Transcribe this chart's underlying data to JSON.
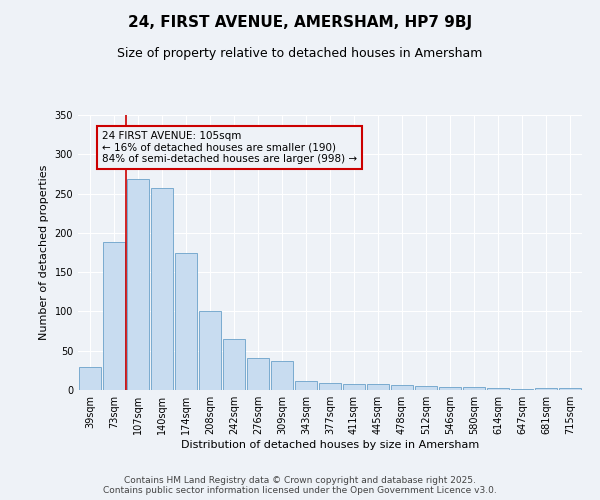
{
  "title1": "24, FIRST AVENUE, AMERSHAM, HP7 9BJ",
  "title2": "Size of property relative to detached houses in Amersham",
  "xlabel": "Distribution of detached houses by size in Amersham",
  "ylabel": "Number of detached properties",
  "categories": [
    "39sqm",
    "73sqm",
    "107sqm",
    "140sqm",
    "174sqm",
    "208sqm",
    "242sqm",
    "276sqm",
    "309sqm",
    "343sqm",
    "377sqm",
    "411sqm",
    "445sqm",
    "478sqm",
    "512sqm",
    "546sqm",
    "580sqm",
    "614sqm",
    "647sqm",
    "681sqm",
    "715sqm"
  ],
  "values": [
    29,
    188,
    268,
    257,
    174,
    100,
    65,
    41,
    37,
    11,
    9,
    8,
    8,
    6,
    5,
    4,
    4,
    2,
    1,
    2,
    2
  ],
  "bar_color": "#c8dcf0",
  "bar_edge_color": "#7aabcf",
  "background_color": "#eef2f7",
  "grid_color": "#ffffff",
  "vline_color": "#cc0000",
  "vline_x_idx": 2,
  "annotation_text": "24 FIRST AVENUE: 105sqm\n← 16% of detached houses are smaller (190)\n84% of semi-detached houses are larger (998) →",
  "annotation_box_color": "#cc0000",
  "ylim": [
    0,
    350
  ],
  "yticks": [
    0,
    50,
    100,
    150,
    200,
    250,
    300,
    350
  ],
  "footer1": "Contains HM Land Registry data © Crown copyright and database right 2025.",
  "footer2": "Contains public sector information licensed under the Open Government Licence v3.0.",
  "title1_fontsize": 11,
  "title2_fontsize": 9,
  "xlabel_fontsize": 8,
  "ylabel_fontsize": 8,
  "tick_fontsize": 7,
  "annotation_fontsize": 7.5,
  "footer_fontsize": 6.5
}
